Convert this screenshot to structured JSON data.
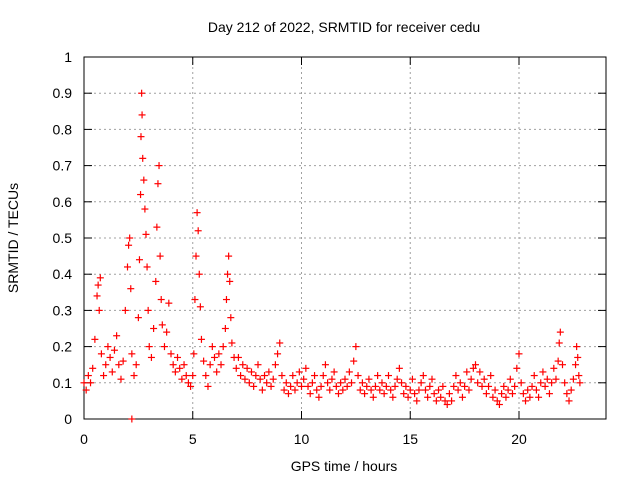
{
  "chart_data": {
    "type": "scatter",
    "title": "Day 212 of 2022, SRMTID for receiver cedu",
    "xlabel": "GPS time / hours",
    "ylabel": "SRMTID / TECUs",
    "xlim": [
      0,
      24
    ],
    "ylim": [
      0,
      1
    ],
    "xticks": [
      0,
      5,
      10,
      15,
      20
    ],
    "xtick_labels": [
      "0",
      "5",
      "10",
      "15",
      "20"
    ],
    "yticks": [
      0,
      0.1,
      0.2,
      0.3,
      0.4,
      0.5,
      0.6,
      0.7,
      0.8,
      0.9,
      1
    ],
    "ytick_labels": [
      "0",
      "0.1",
      "0.2",
      "0.3",
      "0.4",
      "0.5",
      "0.6",
      "0.7",
      "0.8",
      "0.9",
      "1"
    ],
    "grid": true,
    "marker": "+",
    "color": "#ff0000",
    "series": [
      {
        "name": "SRMTID",
        "points": [
          [
            0.0,
            0.1
          ],
          [
            0.1,
            0.08
          ],
          [
            0.2,
            0.12
          ],
          [
            0.3,
            0.1
          ],
          [
            0.4,
            0.14
          ],
          [
            0.5,
            0.22
          ],
          [
            0.6,
            0.34
          ],
          [
            0.65,
            0.37
          ],
          [
            0.7,
            0.3
          ],
          [
            0.75,
            0.39
          ],
          [
            0.8,
            0.18
          ],
          [
            0.9,
            0.12
          ],
          [
            1.0,
            0.15
          ],
          [
            1.1,
            0.2
          ],
          [
            1.2,
            0.17
          ],
          [
            1.3,
            0.13
          ],
          [
            1.4,
            0.19
          ],
          [
            1.5,
            0.23
          ],
          [
            1.6,
            0.15
          ],
          [
            1.7,
            0.11
          ],
          [
            1.8,
            0.16
          ],
          [
            1.9,
            0.3
          ],
          [
            2.0,
            0.42
          ],
          [
            2.05,
            0.48
          ],
          [
            2.1,
            0.5
          ],
          [
            2.15,
            0.36
          ],
          [
            2.2,
            0.18
          ],
          [
            2.3,
            0.12
          ],
          [
            2.4,
            0.15
          ],
          [
            2.5,
            0.28
          ],
          [
            2.55,
            0.44
          ],
          [
            2.6,
            0.62
          ],
          [
            2.62,
            0.78
          ],
          [
            2.65,
            0.9
          ],
          [
            2.67,
            0.84
          ],
          [
            2.7,
            0.72
          ],
          [
            2.75,
            0.66
          ],
          [
            2.8,
            0.58
          ],
          [
            2.85,
            0.51
          ],
          [
            2.9,
            0.42
          ],
          [
            2.95,
            0.3
          ],
          [
            3.0,
            0.2
          ],
          [
            3.1,
            0.17
          ],
          [
            3.2,
            0.25
          ],
          [
            3.3,
            0.38
          ],
          [
            3.35,
            0.53
          ],
          [
            3.4,
            0.65
          ],
          [
            3.45,
            0.7
          ],
          [
            3.5,
            0.45
          ],
          [
            3.55,
            0.33
          ],
          [
            3.6,
            0.26
          ],
          [
            3.7,
            0.2
          ],
          [
            3.8,
            0.24
          ],
          [
            3.9,
            0.32
          ],
          [
            4.0,
            0.18
          ],
          [
            4.1,
            0.15
          ],
          [
            4.2,
            0.13
          ],
          [
            4.3,
            0.17
          ],
          [
            4.4,
            0.14
          ],
          [
            4.5,
            0.11
          ],
          [
            4.6,
            0.15
          ],
          [
            4.7,
            0.12
          ],
          [
            4.8,
            0.1
          ],
          [
            4.9,
            0.09
          ],
          [
            5.0,
            0.12
          ],
          [
            5.05,
            0.18
          ],
          [
            5.1,
            0.33
          ],
          [
            5.15,
            0.45
          ],
          [
            5.2,
            0.57
          ],
          [
            5.25,
            0.52
          ],
          [
            5.3,
            0.4
          ],
          [
            5.35,
            0.31
          ],
          [
            5.4,
            0.22
          ],
          [
            5.5,
            0.16
          ],
          [
            5.6,
            0.12
          ],
          [
            5.7,
            0.09
          ],
          [
            5.8,
            0.15
          ],
          [
            5.9,
            0.2
          ],
          [
            6.0,
            0.17
          ],
          [
            6.1,
            0.13
          ],
          [
            6.2,
            0.18
          ],
          [
            6.3,
            0.15
          ],
          [
            6.4,
            0.2
          ],
          [
            6.5,
            0.25
          ],
          [
            6.55,
            0.33
          ],
          [
            6.6,
            0.4
          ],
          [
            6.65,
            0.45
          ],
          [
            6.7,
            0.38
          ],
          [
            6.75,
            0.28
          ],
          [
            6.8,
            0.21
          ],
          [
            6.9,
            0.17
          ],
          [
            7.0,
            0.14
          ],
          [
            7.1,
            0.17
          ],
          [
            7.2,
            0.12
          ],
          [
            7.3,
            0.15
          ],
          [
            7.4,
            0.11
          ],
          [
            7.5,
            0.14
          ],
          [
            7.6,
            0.1
          ],
          [
            7.7,
            0.13
          ],
          [
            7.8,
            0.09
          ],
          [
            7.9,
            0.12
          ],
          [
            8.0,
            0.15
          ],
          [
            8.1,
            0.11
          ],
          [
            8.2,
            0.08
          ],
          [
            8.3,
            0.12
          ],
          [
            8.4,
            0.1
          ],
          [
            8.5,
            0.13
          ],
          [
            8.6,
            0.09
          ],
          [
            8.7,
            0.11
          ],
          [
            8.8,
            0.15
          ],
          [
            8.9,
            0.18
          ],
          [
            9.0,
            0.21
          ],
          [
            9.1,
            0.12
          ],
          [
            9.2,
            0.08
          ],
          [
            9.3,
            0.1
          ],
          [
            9.4,
            0.07
          ],
          [
            9.5,
            0.09
          ],
          [
            9.6,
            0.12
          ],
          [
            9.7,
            0.08
          ],
          [
            9.8,
            0.1
          ],
          [
            9.9,
            0.13
          ],
          [
            10.0,
            0.09
          ],
          [
            10.1,
            0.11
          ],
          [
            10.2,
            0.14
          ],
          [
            10.3,
            0.09
          ],
          [
            10.4,
            0.07
          ],
          [
            10.5,
            0.1
          ],
          [
            10.6,
            0.12
          ],
          [
            10.7,
            0.08
          ],
          [
            10.8,
            0.06
          ],
          [
            10.9,
            0.09
          ],
          [
            11.0,
            0.12
          ],
          [
            11.1,
            0.15
          ],
          [
            11.2,
            0.1
          ],
          [
            11.3,
            0.08
          ],
          [
            11.4,
            0.11
          ],
          [
            11.5,
            0.13
          ],
          [
            11.6,
            0.09
          ],
          [
            11.7,
            0.07
          ],
          [
            11.8,
            0.1
          ],
          [
            11.9,
            0.08
          ],
          [
            12.0,
            0.11
          ],
          [
            12.1,
            0.09
          ],
          [
            12.2,
            0.13
          ],
          [
            12.3,
            0.1
          ],
          [
            12.4,
            0.16
          ],
          [
            12.5,
            0.2
          ],
          [
            12.6,
            0.12
          ],
          [
            12.7,
            0.08
          ],
          [
            12.8,
            0.1
          ],
          [
            12.9,
            0.07
          ],
          [
            13.0,
            0.09
          ],
          [
            13.1,
            0.11
          ],
          [
            13.2,
            0.08
          ],
          [
            13.3,
            0.06
          ],
          [
            13.4,
            0.09
          ],
          [
            13.5,
            0.12
          ],
          [
            13.6,
            0.08
          ],
          [
            13.7,
            0.1
          ],
          [
            13.8,
            0.07
          ],
          [
            13.9,
            0.09
          ],
          [
            14.0,
            0.12
          ],
          [
            14.1,
            0.08
          ],
          [
            14.2,
            0.06
          ],
          [
            14.3,
            0.09
          ],
          [
            14.4,
            0.11
          ],
          [
            14.5,
            0.14
          ],
          [
            14.6,
            0.1
          ],
          [
            14.7,
            0.07
          ],
          [
            14.8,
            0.09
          ],
          [
            14.9,
            0.06
          ],
          [
            15.0,
            0.08
          ],
          [
            15.1,
            0.11
          ],
          [
            15.2,
            0.07
          ],
          [
            15.3,
            0.05
          ],
          [
            15.4,
            0.08
          ],
          [
            15.5,
            0.1
          ],
          [
            15.6,
            0.12
          ],
          [
            15.7,
            0.08
          ],
          [
            15.8,
            0.06
          ],
          [
            15.9,
            0.09
          ],
          [
            16.0,
            0.11
          ],
          [
            16.1,
            0.07
          ],
          [
            16.2,
            0.05
          ],
          [
            16.3,
            0.08
          ],
          [
            16.4,
            0.06
          ],
          [
            16.5,
            0.09
          ],
          [
            16.6,
            0.05
          ],
          [
            16.7,
            0.04
          ],
          [
            16.8,
            0.07
          ],
          [
            16.9,
            0.05
          ],
          [
            17.0,
            0.09
          ],
          [
            17.1,
            0.12
          ],
          [
            17.2,
            0.08
          ],
          [
            17.3,
            0.1
          ],
          [
            17.4,
            0.06
          ],
          [
            17.5,
            0.09
          ],
          [
            17.6,
            0.13
          ],
          [
            17.7,
            0.08
          ],
          [
            17.8,
            0.11
          ],
          [
            17.9,
            0.14
          ],
          [
            18.0,
            0.15
          ],
          [
            18.1,
            0.1
          ],
          [
            18.2,
            0.13
          ],
          [
            18.3,
            0.09
          ],
          [
            18.4,
            0.11
          ],
          [
            18.5,
            0.07
          ],
          [
            18.6,
            0.09
          ],
          [
            18.7,
            0.12
          ],
          [
            18.8,
            0.06
          ],
          [
            18.9,
            0.08
          ],
          [
            19.0,
            0.05
          ],
          [
            19.1,
            0.04
          ],
          [
            19.2,
            0.07
          ],
          [
            19.3,
            0.09
          ],
          [
            19.4,
            0.06
          ],
          [
            19.5,
            0.08
          ],
          [
            19.6,
            0.11
          ],
          [
            19.7,
            0.07
          ],
          [
            19.8,
            0.09
          ],
          [
            19.9,
            0.14
          ],
          [
            20.0,
            0.18
          ],
          [
            20.1,
            0.1
          ],
          [
            20.2,
            0.07
          ],
          [
            20.3,
            0.05
          ],
          [
            20.4,
            0.08
          ],
          [
            20.5,
            0.06
          ],
          [
            20.6,
            0.09
          ],
          [
            20.7,
            0.12
          ],
          [
            20.8,
            0.08
          ],
          [
            20.9,
            0.06
          ],
          [
            21.0,
            0.1
          ],
          [
            21.1,
            0.13
          ],
          [
            21.2,
            0.09
          ],
          [
            21.3,
            0.11
          ],
          [
            21.4,
            0.07
          ],
          [
            21.5,
            0.1
          ],
          [
            21.6,
            0.14
          ],
          [
            21.7,
            0.11
          ],
          [
            21.8,
            0.16
          ],
          [
            21.85,
            0.21
          ],
          [
            21.9,
            0.24
          ],
          [
            22.0,
            0.15
          ],
          [
            22.1,
            0.1
          ],
          [
            22.2,
            0.07
          ],
          [
            22.3,
            0.05
          ],
          [
            22.4,
            0.08
          ],
          [
            22.5,
            0.11
          ],
          [
            22.6,
            0.15
          ],
          [
            22.65,
            0.2
          ],
          [
            22.7,
            0.17
          ],
          [
            22.75,
            0.12
          ],
          [
            22.8,
            0.1
          ],
          [
            2.2,
            0.0
          ]
        ]
      }
    ]
  }
}
